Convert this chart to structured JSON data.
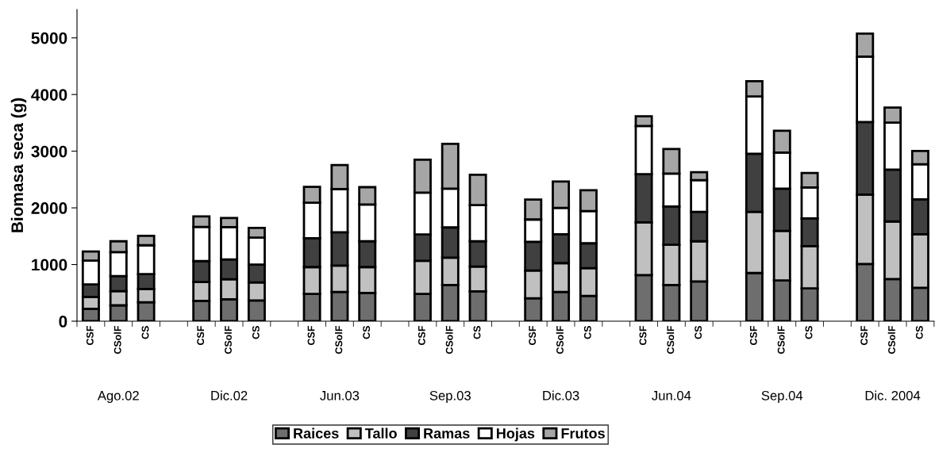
{
  "chart_data": {
    "type": "bar",
    "stacked": true,
    "ylabel": "Biomasa seca (g)",
    "categories": [
      "CSF",
      "CSolF",
      "CS",
      null,
      "CSF",
      "CSolF",
      "CS",
      null,
      "CSF",
      "CSolF",
      "CS",
      null,
      "CSF",
      "CSolF",
      "CS",
      null,
      "CSF",
      "CSolF",
      "CS",
      null,
      "CSF",
      "CSolF",
      "CS",
      null,
      "CSF",
      "CSolF",
      "CS",
      null,
      "CSF",
      "CSolF",
      "CS"
    ],
    "annotations": [
      "Ago.02",
      "Dic.02",
      "Jun.03",
      "Sep.03",
      "Dic.03",
      "Jun.04",
      "Sep.04",
      "Dic. 2004"
    ],
    "series": [
      {
        "name": "Raices",
        "color": "#6e6e6e",
        "values": [
          220,
          280,
          335,
          null,
          360,
          385,
          365,
          null,
          480,
          515,
          500,
          null,
          480,
          640,
          525,
          null,
          405,
          515,
          445,
          null,
          815,
          640,
          700,
          null,
          850,
          720,
          580,
          null,
          1010,
          745,
          590
        ]
      },
      {
        "name": "Tallo",
        "color": "#c0c0c0",
        "values": [
          210,
          250,
          235,
          null,
          330,
          355,
          320,
          null,
          475,
          465,
          455,
          null,
          585,
          480,
          440,
          null,
          490,
          510,
          490,
          null,
          930,
          710,
          710,
          null,
          1080,
          875,
          745,
          null,
          1225,
          1015,
          945
        ]
      },
      {
        "name": "Ramas",
        "color": "#404040",
        "values": [
          220,
          265,
          260,
          null,
          370,
          350,
          315,
          null,
          510,
          590,
          455,
          null,
          465,
          535,
          445,
          null,
          505,
          510,
          440,
          null,
          850,
          675,
          520,
          null,
          1025,
          745,
          490,
          null,
          1280,
          915,
          615
        ]
      },
      {
        "name": "Hojas",
        "color": "#ffffff",
        "values": [
          420,
          425,
          510,
          null,
          605,
          570,
          475,
          null,
          625,
          760,
          650,
          null,
          740,
          685,
          640,
          null,
          395,
          465,
          570,
          null,
          850,
          580,
          560,
          null,
          1010,
          635,
          545,
          null,
          1155,
          830,
          620
        ]
      },
      {
        "name": "Frutos",
        "color": "#a6a6a6",
        "values": [
          160,
          190,
          165,
          null,
          185,
          160,
          170,
          null,
          280,
          425,
          305,
          null,
          580,
          790,
          535,
          null,
          350,
          465,
          365,
          null,
          170,
          435,
          140,
          null,
          270,
          385,
          255,
          null,
          405,
          265,
          235
        ]
      }
    ],
    "ylim": [
      0,
      5500
    ],
    "yticks": [
      0,
      1000,
      2000,
      3000,
      4000,
      5000
    ],
    "grid": false,
    "legend": "bottom"
  }
}
